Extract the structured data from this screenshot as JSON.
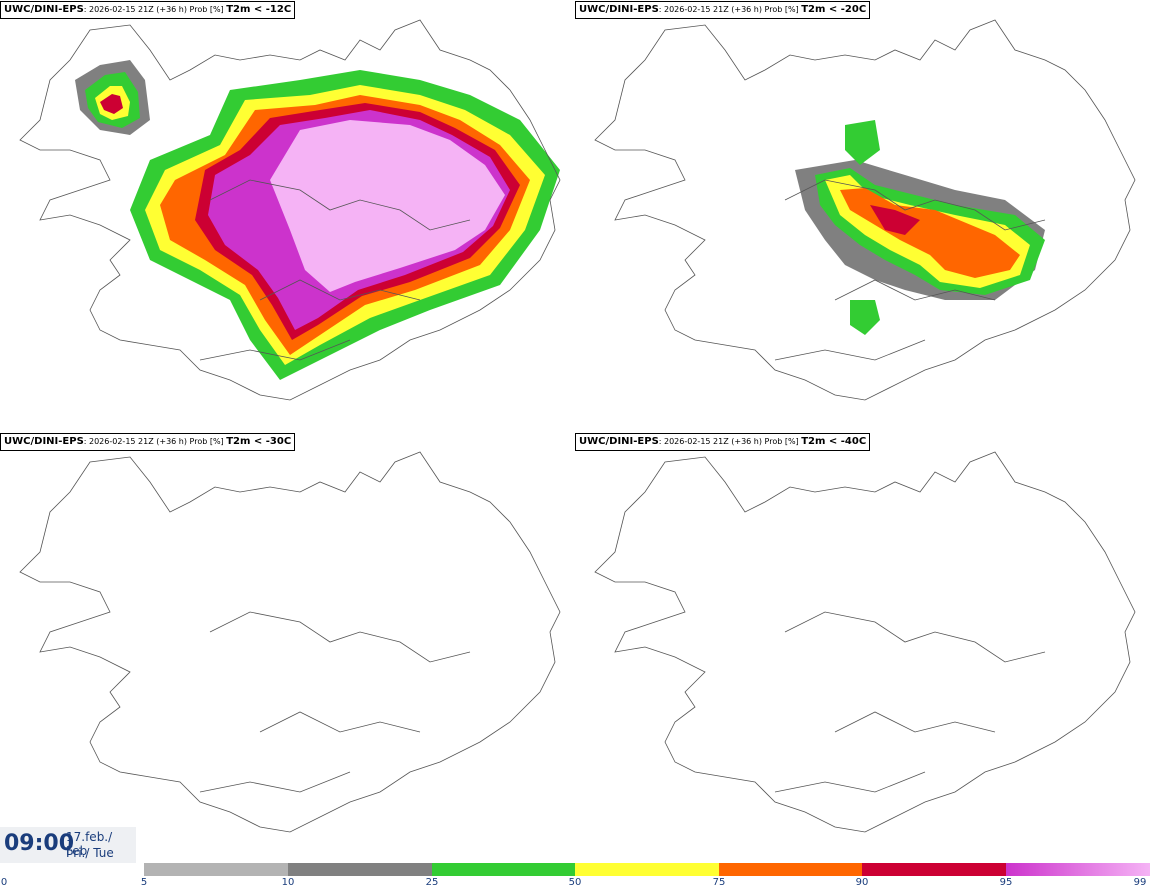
{
  "panels": [
    {
      "model": "UWC/DINI-EPS",
      "desc": ": 2026-02-15 21Z (+36 h) Prob [%] ",
      "threshold": "T2m < -12C"
    },
    {
      "model": "UWC/DINI-EPS",
      "desc": ": 2026-02-15 21Z (+36 h) Prob [%] ",
      "threshold": "T2m < -20C"
    },
    {
      "model": "UWC/DINI-EPS",
      "desc": ": 2026-02-15 21Z (+36 h) Prob [%] ",
      "threshold": "T2m < -30C"
    },
    {
      "model": "UWC/DINI-EPS",
      "desc": ": 2026-02-15 21Z (+36 h) Prob [%] ",
      "threshold": "T2m < -40C"
    }
  ],
  "time": {
    "clock": "09:00",
    "date_line1": "17.feb./ Feb",
    "date_line2": "Þri./ Tue"
  },
  "colorbar": {
    "ticks": [
      "0",
      "5",
      "10",
      "25",
      "50",
      "75",
      "90",
      "95",
      "99"
    ],
    "colors": [
      "#ffffff",
      "#b3b3b3",
      "#808080",
      "#33cc33",
      "#ffff33",
      "#ff6600",
      "#cc0033",
      "#cc33cc",
      "#f5b3f5"
    ]
  }
}
